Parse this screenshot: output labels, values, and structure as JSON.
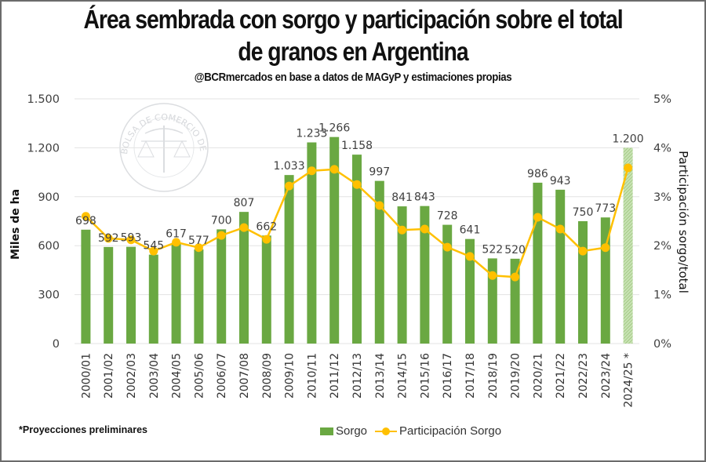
{
  "header": {
    "title_line1": "Área sembrada con sorgo y participación sobre el total",
    "title_line2": "de granos en Argentina",
    "subtitle": "@BCRmercados  en base a datos de MAGyP y estimaciones propias"
  },
  "watermark": "BOLSA DE COMERCIO DE ROSARIO",
  "footnote": "*Proyecciones preliminares",
  "legend": {
    "bar_label": "Sorgo",
    "line_label": "Participación Sorgo"
  },
  "colors": {
    "bar": "#6aa842",
    "projected_bar": "#a9d18e",
    "line": "#ffc000",
    "grid": "#e3e3e3"
  },
  "chart_data": {
    "type": "bar",
    "combo": "bar+line (secondary axis)",
    "title": "Área sembrada con sorgo y participación sobre el total de granos en Argentina",
    "subtitle": "@BCRmercados en base a datos de MAGyP y estimaciones propias",
    "xlabel": "",
    "ylabel": "Miles de ha",
    "y2label": "Participación sorgo/total",
    "ylim": [
      0,
      1500
    ],
    "y2lim": [
      0,
      5
    ],
    "yticks": [
      "0",
      "300",
      "600",
      "900",
      "1.200",
      "1.500"
    ],
    "yticks_values": [
      0,
      300,
      600,
      900,
      1200,
      1500
    ],
    "y2ticks": [
      "0%",
      "1%",
      "2%",
      "3%",
      "4%",
      "5%"
    ],
    "y2ticks_values": [
      0,
      1,
      2,
      3,
      4,
      5
    ],
    "grid": true,
    "legend_position": "bottom",
    "categories": [
      "2000/01",
      "2001/02",
      "2002/03",
      "2003/04",
      "2004/05",
      "2005/06",
      "2006/07",
      "2007/08",
      "2008/09",
      "2009/10",
      "2010/11",
      "2011/12",
      "2012/13",
      "2013/14",
      "2014/15",
      "2015/16",
      "2016/17",
      "2017/18",
      "2018/19",
      "2019/20",
      "2020/21",
      "2021/22",
      "2022/23",
      "2023/24",
      "2024/25 *"
    ],
    "series": [
      {
        "name": "Sorgo",
        "type": "bar",
        "axis": "left",
        "values": [
          698,
          592,
          593,
          545,
          617,
          577,
          700,
          807,
          662,
          1033,
          1233,
          1266,
          1158,
          997,
          841,
          843,
          728,
          641,
          522,
          520,
          986,
          943,
          750,
          773,
          1200
        ],
        "labels": [
          "698",
          "592",
          "593",
          "545",
          "617",
          "577",
          "700",
          "807",
          "662",
          "1.033",
          "1.233",
          "1.266",
          "1.158",
          "997",
          "841",
          "843",
          "728",
          "641",
          "522",
          "520",
          "986",
          "943",
          "750",
          "773",
          "1.200"
        ],
        "projected_index": 24
      },
      {
        "name": "Participación Sorgo",
        "type": "line",
        "axis": "right",
        "unit": "%",
        "values": [
          2.6,
          2.15,
          2.12,
          1.89,
          2.07,
          1.96,
          2.21,
          2.37,
          2.13,
          3.22,
          3.53,
          3.56,
          3.25,
          2.82,
          2.32,
          2.34,
          1.97,
          1.78,
          1.39,
          1.36,
          2.58,
          2.34,
          1.89,
          1.96,
          3.59
        ]
      }
    ]
  }
}
